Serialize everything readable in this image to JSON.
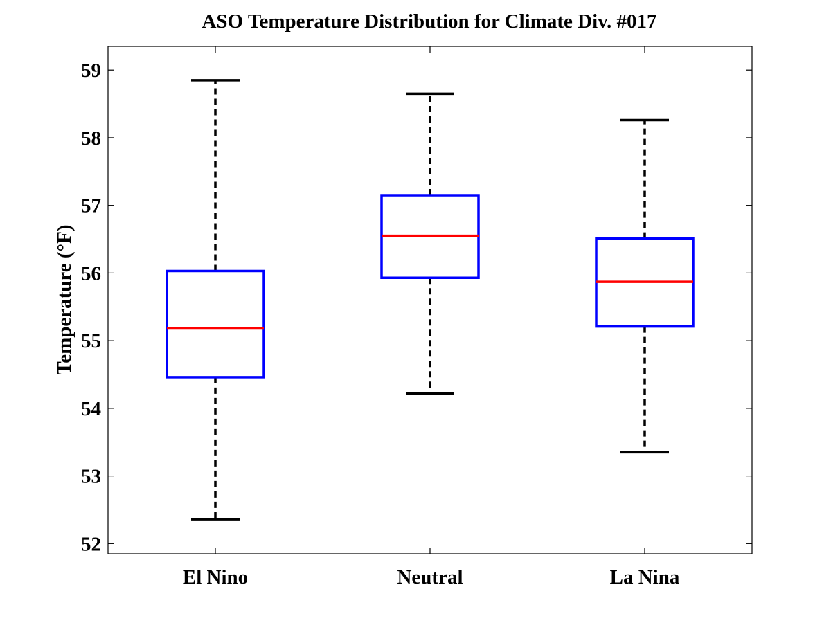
{
  "chart_data": {
    "type": "boxplot",
    "title": "ASO Temperature Distribution for Climate Div. #017",
    "xlabel": "",
    "ylabel": "Temperature (°F)",
    "ylim": [
      51.85,
      59.35
    ],
    "yticks": [
      52,
      53,
      54,
      55,
      56,
      57,
      58,
      59
    ],
    "categories": [
      "El Nino",
      "Neutral",
      "La Nina"
    ],
    "boxes": [
      {
        "name": "El Nino",
        "whisker_low": 52.36,
        "q1": 54.46,
        "median": 55.18,
        "q3": 56.03,
        "whisker_high": 58.85
      },
      {
        "name": "Neutral",
        "whisker_low": 54.22,
        "q1": 55.93,
        "median": 56.55,
        "q3": 57.15,
        "whisker_high": 58.65
      },
      {
        "name": "La Nina",
        "whisker_low": 53.35,
        "q1": 55.21,
        "median": 55.87,
        "q3": 56.51,
        "whisker_high": 58.26
      }
    ],
    "colors": {
      "box": "#0000ff",
      "median": "#ff0000",
      "whisker": "#000000"
    },
    "grid": false
  }
}
